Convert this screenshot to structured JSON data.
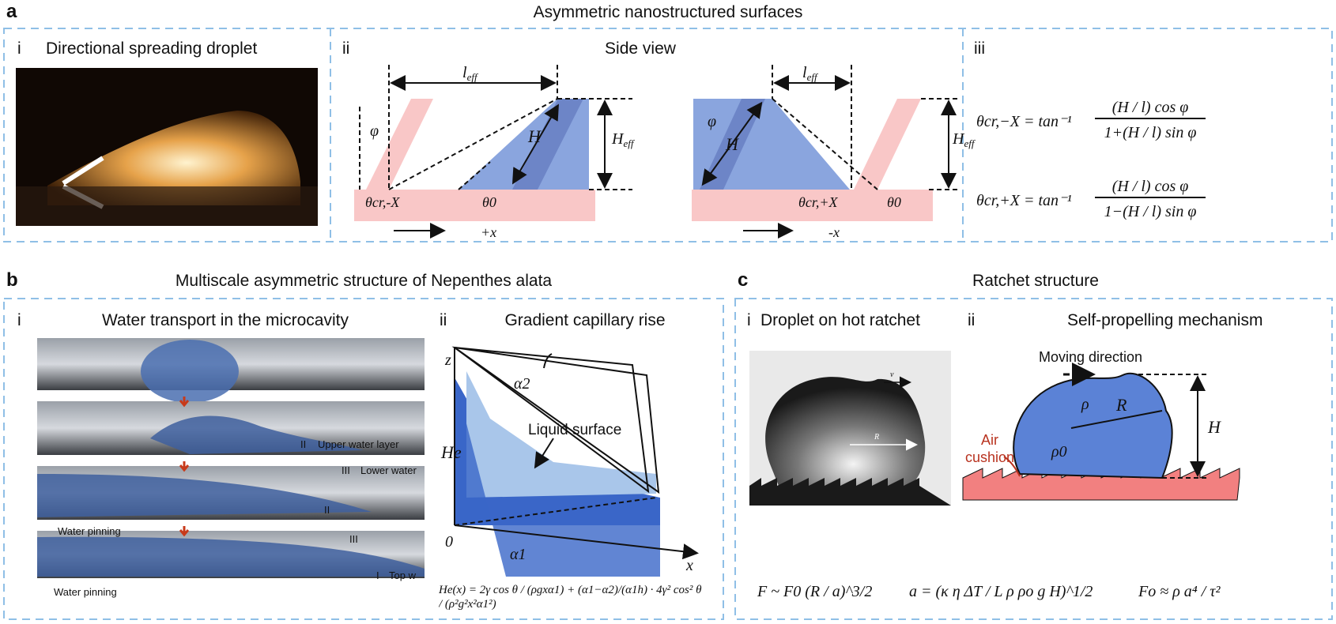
{
  "panel_a": {
    "label": "a",
    "title": "Asymmetric nanostructured surfaces",
    "i": {
      "num": "i",
      "title": "Directional spreading droplet"
    },
    "ii": {
      "num": "ii",
      "title": "Side view",
      "leff": "l",
      "leff_sub": "eff",
      "heff": "H",
      "heff_sub": "eff",
      "H": "H",
      "phi": "φ",
      "theta_cr_minus": "θcr,-X",
      "theta0": "θ0",
      "theta_cr_plus": "θcr,+X",
      "dir_plus": "+x",
      "dir_minus": "-x"
    },
    "iii": {
      "num": "iii",
      "eq1_lhs": "θcr,−X = tan⁻¹",
      "eq1_num": "(H / l) cos φ",
      "eq1_den": "1+(H / l) sin φ",
      "eq2_lhs": "θcr,+X = tan⁻¹",
      "eq2_num": "(H / l) cos φ",
      "eq2_den": "1−(H / l) sin φ"
    }
  },
  "panel_b": {
    "label": "b",
    "title": "Multiscale asymmetric structure of Nepenthes alata",
    "i": {
      "num": "i",
      "title": "Water transport in the microcavity",
      "annotations": [
        "II",
        "Upper water layer",
        "III",
        "Lower water",
        "II",
        "III",
        "Water pinning",
        "Water pinning",
        "I",
        "Top w"
      ]
    },
    "ii": {
      "num": "ii",
      "title": "Gradient capillary rise",
      "z": "z",
      "x": "x",
      "origin": "0",
      "alpha1": "α1",
      "alpha2": "α2",
      "He": "He",
      "liquid_surface": "Liquid surface",
      "equation": "He(x) = 2γ cos θ / (ρgxα1) + (α1−α2)/(α1h) · 4γ² cos² θ / (ρ²g²x²α1²)"
    }
  },
  "panel_c": {
    "label": "c",
    "title": "Ratchet structure",
    "i": {
      "num": "i",
      "title": "Droplet on hot ratchet",
      "v": "v",
      "R": "R"
    },
    "ii": {
      "num": "ii",
      "title": "Self-propelling mechanism",
      "moving_direction": "Moving direction",
      "rho": "ρ",
      "rho0": "ρ0",
      "R": "R",
      "H": "H",
      "air": "Air",
      "cushion": "cushion"
    },
    "equations": [
      "F ~ F0 (R / a)^3/2",
      "a = (κ η ΔT / L ρ ρo g H)^1/2",
      "Fo ≈ ρ a⁴ / τ²"
    ]
  },
  "colors": {
    "box": "#8fbfe6",
    "blue": "#6d8fd6",
    "pink": "#f9c7c7",
    "ratchet": "#f28080",
    "air": "#b8321f"
  }
}
